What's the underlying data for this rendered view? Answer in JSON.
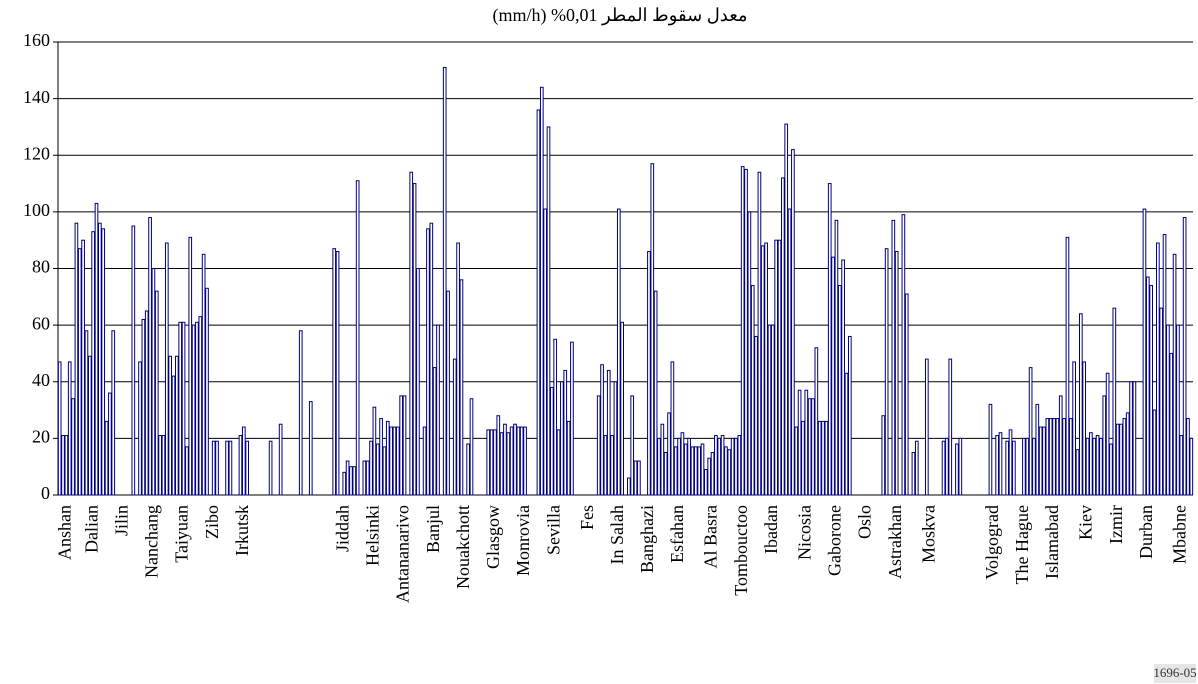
{
  "chart_data": {
    "type": "bar",
    "title": "معدل سقوط المطر 0,01% (mm/h)",
    "footnote": "1696-05",
    "color": "#000080",
    "grid": true,
    "ylim": [
      0,
      160
    ],
    "yticks": [
      0,
      20,
      40,
      60,
      80,
      100,
      120,
      140,
      160
    ],
    "categories": [
      null,
      null,
      "Anshan",
      null,
      null,
      null,
      null,
      null,
      null,
      null,
      "Dalian",
      null,
      null,
      null,
      null,
      null,
      null,
      null,
      null,
      "Jilin",
      null,
      null,
      null,
      null,
      null,
      null,
      null,
      null,
      "Nanchang",
      null,
      null,
      null,
      null,
      null,
      null,
      null,
      null,
      "Taiyuan",
      null,
      null,
      null,
      null,
      null,
      null,
      null,
      null,
      "Zibo",
      null,
      null,
      null,
      null,
      null,
      null,
      null,
      null,
      "Irkutsk",
      null,
      null,
      null,
      null,
      null,
      null,
      null,
      null,
      null,
      null,
      null,
      null,
      null,
      null,
      null,
      null,
      null,
      null,
      null,
      null,
      null,
      null,
      null,
      null,
      null,
      null,
      null,
      null,
      null,
      "Jiddah",
      null,
      null,
      null,
      null,
      null,
      null,
      null,
      null,
      "Helsinki",
      null,
      null,
      null,
      null,
      null,
      null,
      null,
      null,
      "Antananarivo",
      null,
      null,
      null,
      null,
      null,
      null,
      null,
      null,
      "Banjul",
      null,
      null,
      null,
      null,
      null,
      null,
      null,
      null,
      "Nouakchott",
      null,
      null,
      null,
      null,
      null,
      null,
      null,
      null,
      "Glasgow",
      null,
      null,
      null,
      null,
      null,
      null,
      null,
      null,
      "Monrovia",
      null,
      null,
      null,
      null,
      null,
      null,
      null,
      null,
      "Sevilla",
      null,
      null,
      null,
      null,
      null,
      null,
      null,
      null,
      null,
      "Fes",
      null,
      null,
      null,
      null,
      null,
      null,
      null,
      null,
      "In Salah",
      null,
      null,
      null,
      null,
      null,
      null,
      null,
      null,
      "Banghazi",
      null,
      null,
      null,
      null,
      null,
      null,
      null,
      null,
      "Esfahan",
      null,
      null,
      null,
      null,
      null,
      null,
      null,
      null,
      null,
      "Al Basra",
      null,
      null,
      null,
      null,
      null,
      null,
      null,
      null,
      "Tombouctoo",
      null,
      null,
      null,
      null,
      null,
      null,
      null,
      null,
      "Ibadan",
      null,
      null,
      null,
      null,
      null,
      null,
      null,
      null,
      null,
      "Nicosia",
      null,
      null,
      null,
      null,
      null,
      null,
      null,
      null,
      "Gaborone",
      null,
      null,
      null,
      null,
      null,
      null,
      null,
      null,
      "Oslo",
      null,
      null,
      null,
      null,
      null,
      null,
      null,
      null,
      "Astrakhan",
      null,
      null,
      null,
      null,
      null,
      null,
      null,
      null,
      null,
      "Moskva",
      null,
      null,
      null,
      null,
      null,
      null,
      null,
      null,
      null,
      null,
      null,
      null,
      null,
      null,
      null,
      null,
      null,
      null,
      "Volgograd",
      null,
      null,
      null,
      null,
      null,
      null,
      null,
      null,
      "The Hague",
      null,
      null,
      null,
      null,
      null,
      null,
      null,
      null,
      "Islamabad",
      null,
      null,
      null,
      null,
      null,
      null,
      null,
      null,
      null,
      "Kiev",
      null,
      null,
      null,
      null,
      null,
      null,
      null,
      null,
      "Izmir",
      null,
      null,
      null,
      null,
      null,
      null,
      null,
      null,
      "Durban",
      null,
      null,
      null,
      null,
      null,
      null,
      null,
      null,
      null,
      "Mbabne",
      null,
      null,
      null
    ],
    "values": [
      47,
      21,
      21,
      47,
      34,
      96,
      87,
      90,
      58,
      49,
      93,
      103,
      96,
      94,
      26,
      36,
      58,
      0,
      0,
      0,
      0,
      0,
      95,
      0,
      47,
      62,
      65,
      98,
      80,
      72,
      21,
      21,
      89,
      49,
      42,
      49,
      61,
      61,
      17,
      91,
      60,
      61,
      63,
      85,
      73,
      0,
      19,
      19,
      0,
      0,
      19,
      19,
      0,
      0,
      21,
      24,
      19,
      0,
      0,
      0,
      0,
      0,
      0,
      19,
      0,
      0,
      25,
      0,
      0,
      0,
      0,
      0,
      58,
      0,
      0,
      33,
      0,
      0,
      0,
      0,
      0,
      0,
      87,
      86,
      0,
      8,
      12,
      10,
      10,
      111,
      0,
      12,
      12,
      19,
      31,
      18,
      27,
      17,
      26,
      24,
      24,
      24,
      35,
      35,
      0,
      114,
      110,
      80,
      0,
      24,
      94,
      96,
      45,
      60,
      0,
      151,
      72,
      0,
      48,
      89,
      76,
      0,
      18,
      34,
      0,
      0,
      0,
      0,
      23,
      23,
      23,
      28,
      22,
      25,
      22,
      24,
      25,
      24,
      24,
      24,
      0,
      0,
      0,
      136,
      144,
      101,
      130,
      38,
      55,
      23,
      40,
      44,
      26,
      54,
      0,
      0,
      0,
      0,
      0,
      0,
      0,
      35,
      46,
      21,
      44,
      21,
      40,
      101,
      61,
      0,
      6,
      35,
      12,
      12,
      0,
      0,
      86,
      117,
      72,
      20,
      25,
      15,
      29,
      47,
      17,
      20,
      22,
      18,
      20,
      17,
      17,
      17,
      18,
      9,
      13,
      15,
      21,
      20,
      21,
      17,
      16,
      20,
      20,
      21,
      116,
      115,
      100,
      74,
      56,
      114,
      88,
      89,
      60,
      60,
      90,
      90,
      112,
      131,
      101,
      122,
      24,
      37,
      26,
      37,
      34,
      34,
      52,
      26,
      26,
      26,
      110,
      84,
      97,
      74,
      83,
      43,
      56,
      0,
      0,
      0,
      0,
      0,
      0,
      0,
      0,
      0,
      28,
      87,
      0,
      97,
      86,
      0,
      99,
      71,
      0,
      15,
      19,
      0,
      0,
      48,
      0,
      0,
      0,
      0,
      19,
      20,
      48,
      0,
      18,
      20,
      0,
      0,
      0,
      0,
      0,
      0,
      0,
      0,
      32,
      0,
      21,
      22,
      0,
      19,
      23,
      19,
      0,
      0,
      20,
      20,
      45,
      20,
      32,
      24,
      24,
      27,
      27,
      27,
      27,
      35,
      27,
      91,
      27,
      47,
      16,
      64,
      47,
      20,
      22,
      20,
      21,
      20,
      35,
      43,
      18,
      66,
      25,
      25,
      27,
      29,
      40,
      40,
      0,
      0,
      101,
      77,
      74,
      30,
      89,
      66,
      92,
      60,
      50,
      85,
      60,
      21,
      98,
      27,
      20
    ]
  }
}
